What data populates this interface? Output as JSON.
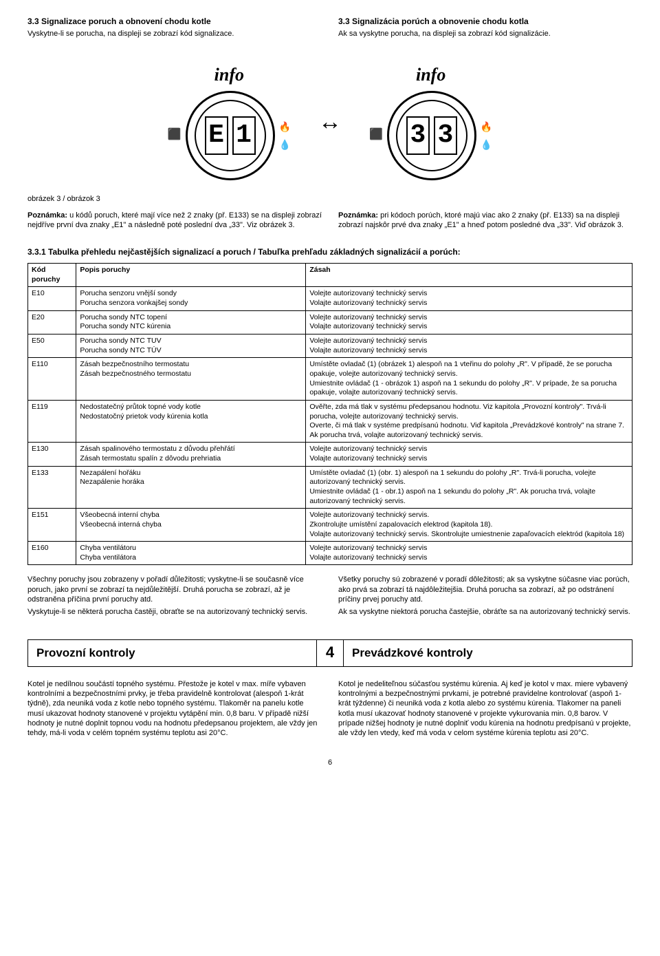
{
  "header": {
    "left": {
      "title": "3.3 Signalizace poruch a obnovení chodu kotle",
      "sub": "Vyskytne-li se porucha, na displeji se zobrazí kód signalizace."
    },
    "right": {
      "title": "3.3 Signalizácia porúch a obnovenie chodu kotla",
      "sub": "Ak sa vyskytne porucha, na displeji sa zobrazí kód signalizácie."
    }
  },
  "figure": {
    "info_label": "info",
    "left_digits": [
      "E",
      "1"
    ],
    "right_digits": [
      "3",
      "3"
    ],
    "arrow": "↔"
  },
  "notes": {
    "caption": "obrázek 3 / obrázok 3",
    "left": "<b>Poznámka:</b> u kódů poruch, které mají více než 2 znaky (př. E133) se na displeji zobrazí nejdříve první dva znaky „E1\" a následně poté poslední dva „33\". Viz obrázek 3.",
    "right": "<b>Poznámka:</b> pri kódoch porúch, ktoré majú viac ako 2 znaky (př. E133) sa na displeji zobrazí najskôr prvé dva znaky „E1\" a hneď potom posledné dva „33\". Viď obrázok 3."
  },
  "table": {
    "title": "3.3.1 Tabulka přehledu nejčastějších signalizací a poruch / Tabuľka prehľadu základných signalizácií a porúch:",
    "headers": {
      "code": "Kód poruchy",
      "desc": "Popis poruchy",
      "action": "Zásah"
    },
    "rows": [
      {
        "code": "E10",
        "desc": "Porucha senzoru vnější sondy\nPorucha senzora vonkajšej sondy",
        "action": "Volejte autorizovaný technický servis\nVolajte autorizovaný technický servis"
      },
      {
        "code": "E20",
        "desc": "Porucha sondy NTC topení\nPorucha sondy NTC kúrenia",
        "action": "Volejte autorizovaný technický servis\nVolajte autorizovaný technický servis"
      },
      {
        "code": "E50",
        "desc": "Porucha sondy NTC TUV\nPorucha sondy NTC TÚV",
        "action": "Volejte autorizovaný technický servis\nVolajte autorizovaný technický servis"
      },
      {
        "code": "E110",
        "desc": "Zásah bezpečnostního termostatu\nZásah bezpečnostného termostatu",
        "action": "Umístěte ovladač (1) (obrázek 1) alespoň na 1 vteřinu do polohy „R\". V případě, že se porucha opakuje, volejte autorizovaný technický servis.\nUmiestnite ovládač (1 - obrázok 1) aspoň na 1 sekundu do polohy „R\". V prípade, že sa porucha opakuje, volajte autorizovaný technický servis."
      },
      {
        "code": "E119",
        "desc": "Nedostatečný průtok topné vody kotle\nNedostatočný prietok vody kúrenia kotla",
        "action": "Ověřte, zda má tlak v systému předepsanou hodnotu. Viz kapitola „Provozní kontroly\". Trvá-li porucha, volejte autorizovaný technický servis.\nOverte, či má tlak v systéme predpísanú hodnotu. Viď kapitola „Prevádzkové kontroly\" na strane 7. Ak porucha trvá, volajte autorizovaný technický servis."
      },
      {
        "code": "E130",
        "desc": "Zásah spalinového termostatu z důvodu přehřátí\nZásah termostatu spalín z dôvodu prehriatia",
        "action": "Volejte autorizovaný technický servis\nVolajte autorizovaný technický servis"
      },
      {
        "code": "E133",
        "desc": "Nezapálení hořáku\nNezapálenie horáka",
        "action": "Umístěte ovladač (1) (obr. 1) alespoň na 1 sekundu do polohy „R\". Trvá-li porucha, volejte autorizovaný technický servis.\nUmiestnite ovládač (1 - obr.1) aspoň na 1 sekundu do polohy „R\". Ak porucha trvá, volajte autorizovaný technický servis."
      },
      {
        "code": "E151",
        "desc": "Všeobecná interní chyba\nVšeobecná interná chyba",
        "action": "Volejte autorizovaný technický servis.\nZkontrolujte umístění zapalovacích elektrod (kapitola 18).\nVolajte autorizovaný technický servis. Skontrolujte umiestnenie zapaľovacích elektród (kapitola 18)"
      },
      {
        "code": "E160",
        "desc": "Chyba ventilátoru\nChyba ventilátora",
        "action": "Volejte autorizovaný technický servis\nVolajte autorizovaný technický servis"
      }
    ]
  },
  "footer_paras": {
    "left": "Všechny poruchy jsou zobrazeny v pořadí důležitosti; vyskytne-li se současně více poruch, jako první se zobrazí ta nejdůležitější. Druhá porucha se zobrazí, až je odstraněna příčina první poruchy atd.\nVyskytuje-li se některá porucha častěji, obraťte se na autorizovaný technický servis.",
    "right": "Všetky poruchy sú zobrazené v poradí dôležitosti; ak sa vyskytne súčasne viac porúch, ako prvá sa zobrazí tá najdôležitejšia. Druhá porucha sa zobrazí, až po odstránení príčiny prvej poruchy atd.\nAk sa vyskytne niektorá porucha častejšie, obráťte sa na autorizovaný technický servis."
  },
  "chapter": {
    "left": "Provozní kontroly",
    "num": "4",
    "right": "Prevádzkové kontroly"
  },
  "bottom_paras": {
    "left": "Kotel je nedílnou součástí topného systému. Přestože je kotel v max. míře vybaven kontrolními a bezpečnostními prvky, je třeba pravidelně kontrolovat (alespoň 1-krát týdně), zda neuniká voda z kotle nebo topného systému. Tlakoměr na panelu kotle musí ukazovat hodnoty stanovené v projektu vytápění min. 0,8 baru. V případě nižší hodnoty je nutné doplnit topnou vodu na hodnotu předepsanou projektem, ale vždy jen tehdy, má-li voda v celém topném systému teplotu asi 20°C.",
    "right": "Kotol je nedeliteľnou súčasťou systému kúrenia. Aj keď je kotol v max. miere vybavený kontrolnými a bezpečnostnými prvkami, je potrebné pravidelne kontrolovať (aspoň 1-krát týždenne) či neuniká voda z kotla alebo zo systému kúrenia. Tlakomer na paneli kotla musí ukazovať hodnoty stanovené v projekte vykurovania min. 0,8 barov. V prípade nižšej hodnoty je nutné doplniť vodu kúrenia na hodnotu predpísanú v projekte, ale vždy len vtedy, keď má voda v celom systéme kúrenia teplotu asi 20°C."
  },
  "page_number": "6"
}
